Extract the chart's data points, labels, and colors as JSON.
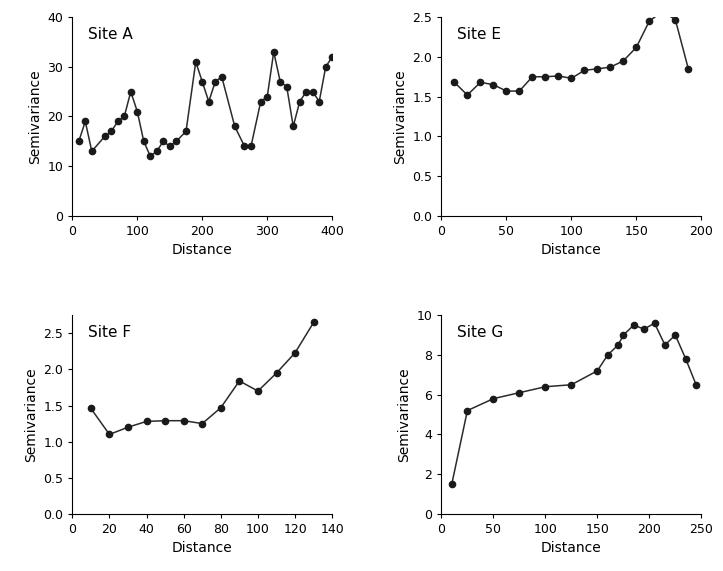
{
  "site_A": {
    "label": "Site A",
    "x": [
      10,
      20,
      30,
      50,
      60,
      70,
      80,
      90,
      100,
      110,
      120,
      130,
      140,
      150,
      160,
      175,
      190,
      200,
      210,
      220,
      230,
      250,
      265,
      275,
      290,
      300,
      310,
      320,
      330,
      340,
      350,
      360,
      370,
      380,
      390,
      400
    ],
    "y": [
      15,
      19,
      13,
      16,
      17,
      19,
      20,
      25,
      21,
      15,
      12,
      13,
      15,
      14,
      15,
      17,
      31,
      27,
      23,
      27,
      28,
      18,
      14,
      14,
      23,
      24,
      33,
      27,
      26,
      18,
      23,
      25,
      25,
      23,
      30,
      32
    ],
    "xlim": [
      0,
      400
    ],
    "ylim": [
      0,
      40
    ],
    "xticks": [
      0,
      100,
      200,
      300,
      400
    ],
    "yticks": [
      0,
      10,
      20,
      30,
      40
    ]
  },
  "site_E": {
    "label": "Site E",
    "x": [
      10,
      20,
      30,
      40,
      50,
      60,
      70,
      80,
      90,
      100,
      110,
      120,
      130,
      140,
      150,
      160,
      170,
      180,
      190
    ],
    "y": [
      1.68,
      1.52,
      1.68,
      1.65,
      1.57,
      1.57,
      1.75,
      1.75,
      1.76,
      1.73,
      1.83,
      1.85,
      1.87,
      1.95,
      2.12,
      2.45,
      2.57,
      2.47,
      1.85
    ],
    "xlim": [
      0,
      200
    ],
    "ylim": [
      0.0,
      2.5
    ],
    "xticks": [
      0,
      50,
      100,
      150,
      200
    ],
    "yticks": [
      0.0,
      0.5,
      1.0,
      1.5,
      2.0,
      2.5
    ]
  },
  "site_F": {
    "label": "Site F",
    "x": [
      10,
      20,
      30,
      40,
      50,
      60,
      70,
      80,
      90,
      100,
      110,
      120,
      130
    ],
    "y": [
      1.46,
      1.1,
      1.2,
      1.28,
      1.29,
      1.29,
      1.25,
      1.47,
      1.84,
      1.7,
      1.95,
      2.23,
      2.65
    ],
    "xlim": [
      0,
      140
    ],
    "ylim": [
      0.0,
      2.75
    ],
    "xticks": [
      0,
      20,
      40,
      60,
      80,
      100,
      120,
      140
    ],
    "yticks": [
      0.0,
      0.5,
      1.0,
      1.5,
      2.0,
      2.5
    ]
  },
  "site_G": {
    "label": "Site G",
    "x": [
      10,
      25,
      50,
      75,
      100,
      125,
      150,
      160,
      170,
      175,
      185,
      195,
      205,
      215,
      225,
      235,
      245
    ],
    "y": [
      1.5,
      5.2,
      5.8,
      6.1,
      6.4,
      6.5,
      7.2,
      8.0,
      8.5,
      9.0,
      9.5,
      9.3,
      9.6,
      8.5,
      9.0,
      7.8,
      6.5
    ],
    "xlim": [
      0,
      250
    ],
    "ylim": [
      0,
      10
    ],
    "xticks": [
      0,
      50,
      100,
      150,
      200,
      250
    ],
    "yticks": [
      0,
      2,
      4,
      6,
      8,
      10
    ]
  },
  "line_color": "#2b2b2b",
  "marker_color": "#1a1a1a",
  "marker_size": 4.5,
  "line_width": 1.1,
  "xlabel": "Distance",
  "ylabel": "Semivariance",
  "background_color": "#ffffff",
  "label_fontsize": 11,
  "tick_fontsize": 9,
  "axis_fontsize": 10
}
